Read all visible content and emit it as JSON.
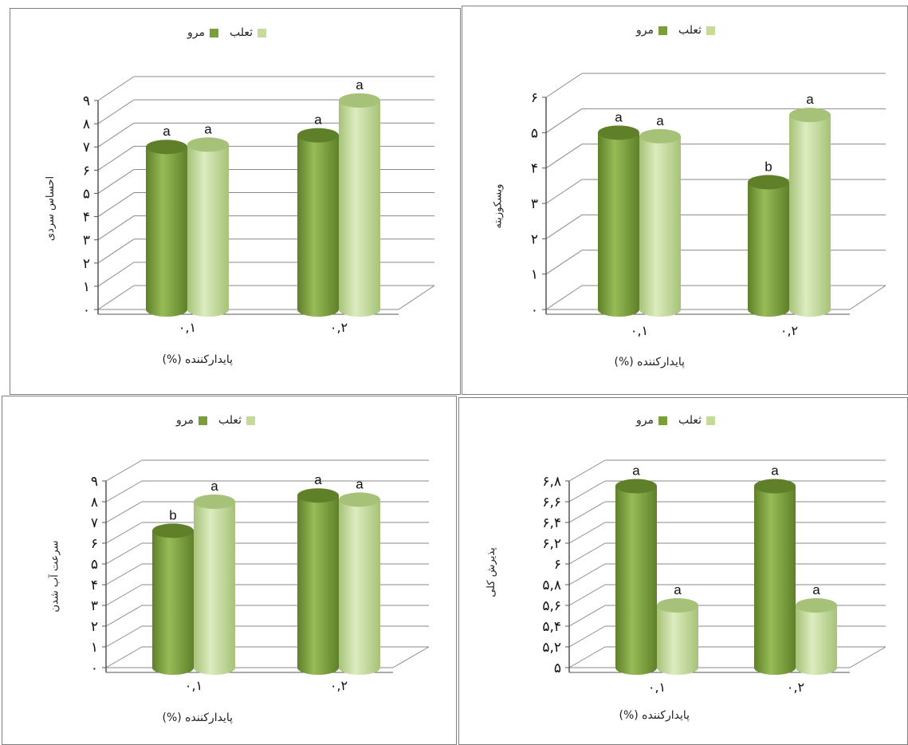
{
  "colors": {
    "marv": "#7a9e3a",
    "marv_dark": "#5f8028",
    "marv_light": "#98bb58",
    "salep": "#c4dc97",
    "salep_dark": "#a6c278",
    "salep_light": "#dcecbf",
    "grid": "#8a8a8a"
  },
  "legend": {
    "salep": "ثعلب",
    "marv": "مرو"
  },
  "chart_data": [
    {
      "type": "bar",
      "ylabel": "احساس سردی",
      "xlabel": "پایدارکننده (%)",
      "yticks": [
        "۰",
        "۱",
        "۲",
        "۳",
        "۴",
        "۵",
        "۶",
        "۷",
        "۸",
        "۹"
      ],
      "ylim": [
        0,
        9
      ],
      "categories": [
        "۰,۱",
        "۰,۲"
      ],
      "series": [
        {
          "name": "مرو",
          "values": [
            7.0,
            7.5
          ],
          "letters": [
            "a",
            "a"
          ]
        },
        {
          "name": "ثعلب",
          "values": [
            7.1,
            9.0
          ],
          "letters": [
            "a",
            "a"
          ]
        }
      ]
    },
    {
      "type": "bar",
      "ylabel": "ویسکوزیته",
      "xlabel": "پایدارکننده (%)",
      "yticks": [
        "۰",
        "۱",
        "۲",
        "۳",
        "۴",
        "۵",
        "۶"
      ],
      "ylim": [
        0,
        6
      ],
      "categories": [
        "۰,۱",
        "۰,۲"
      ],
      "series": [
        {
          "name": "مرو",
          "values": [
            5.0,
            3.6
          ],
          "letters": [
            "a",
            "b"
          ]
        },
        {
          "name": "ثعلب",
          "values": [
            4.9,
            5.5
          ],
          "letters": [
            "a",
            "a"
          ]
        }
      ]
    },
    {
      "type": "bar",
      "ylabel": "سرعت آب شدن",
      "xlabel": "پایدارکننده (%)",
      "yticks": [
        "۰",
        "۱",
        "۲",
        "۳",
        "۴",
        "۵",
        "۶",
        "۷",
        "۸",
        "۹"
      ],
      "ylim": [
        0,
        9
      ],
      "categories": [
        "۰,۱",
        "۰,۲"
      ],
      "series": [
        {
          "name": "مرو",
          "values": [
            6.6,
            8.3
          ],
          "letters": [
            "b",
            "a"
          ]
        },
        {
          "name": "ثعلب",
          "values": [
            8.0,
            8.1
          ],
          "letters": [
            "a",
            "a"
          ]
        }
      ]
    },
    {
      "type": "bar",
      "ylabel": "پذیرش کلی",
      "xlabel": "پایدارکننده (%)",
      "yticks": [
        "۵",
        "۵,۲",
        "۵,۴",
        "۵,۶",
        "۵,۸",
        "۶",
        "۶,۲",
        "۶,۴",
        "۶,۶",
        "۶,۸"
      ],
      "ylim": [
        5,
        6.8
      ],
      "categories": [
        "۰,۱",
        "۰,۲"
      ],
      "series": [
        {
          "name": "مرو",
          "values": [
            6.75,
            6.75
          ],
          "letters": [
            "a",
            "a"
          ]
        },
        {
          "name": "ثعلب",
          "values": [
            5.6,
            5.6
          ],
          "letters": [
            "a",
            "a"
          ]
        }
      ]
    }
  ]
}
